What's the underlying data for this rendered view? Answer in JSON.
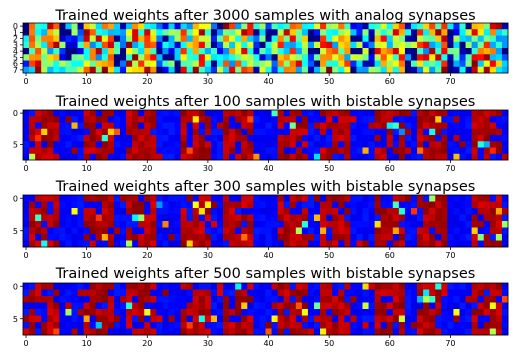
{
  "chart_data": [
    {
      "type": "heatmap",
      "title": "Trained weights after 3000 samples with analog synapses",
      "synapse": "analog",
      "colormap": "jet",
      "grid": false,
      "xlim": [
        -0.5,
        79.5
      ],
      "ylim": [
        7.5,
        -0.5
      ],
      "x_ticks": [
        0,
        10,
        20,
        30,
        40,
        50,
        60,
        70
      ],
      "y_ticks": [
        0,
        1,
        2,
        3,
        4,
        5,
        6,
        7
      ],
      "rows": 8,
      "cols": 80,
      "dominant_low": 0.12,
      "dominant_high": 0.95
    },
    {
      "type": "heatmap",
      "title": "Trained weights after 100 samples with bistable synapses",
      "synapse": "bistable",
      "colormap": "jet",
      "grid": false,
      "xlim": [
        -0.5,
        79.5
      ],
      "ylim": [
        7.5,
        -0.5
      ],
      "x_ticks": [
        0,
        10,
        20,
        30,
        40,
        50,
        60,
        70
      ],
      "y_ticks": [
        0,
        5
      ],
      "rows": 8,
      "cols": 80,
      "dominant_low": 0.1,
      "dominant_high": 0.95
    },
    {
      "type": "heatmap",
      "title": "Trained weights after 300 samples with bistable synapses",
      "synapse": "bistable",
      "colormap": "jet",
      "grid": false,
      "xlim": [
        -0.5,
        79.5
      ],
      "ylim": [
        7.5,
        -0.5
      ],
      "x_ticks": [
        0,
        10,
        20,
        30,
        40,
        50,
        60,
        70
      ],
      "y_ticks": [
        0,
        5
      ],
      "rows": 8,
      "cols": 80,
      "dominant_low": 0.1,
      "dominant_high": 0.95
    },
    {
      "type": "heatmap",
      "title": "Trained weights after 500 samples with bistable synapses",
      "synapse": "bistable",
      "colormap": "jet",
      "grid": false,
      "xlim": [
        -0.5,
        79.5
      ],
      "ylim": [
        7.5,
        -0.5
      ],
      "x_ticks": [
        0,
        10,
        20,
        30,
        40,
        50,
        60,
        70
      ],
      "y_ticks": [
        0,
        5
      ],
      "rows": 8,
      "cols": 80,
      "dominant_low": 0.1,
      "dominant_high": 0.95
    }
  ]
}
